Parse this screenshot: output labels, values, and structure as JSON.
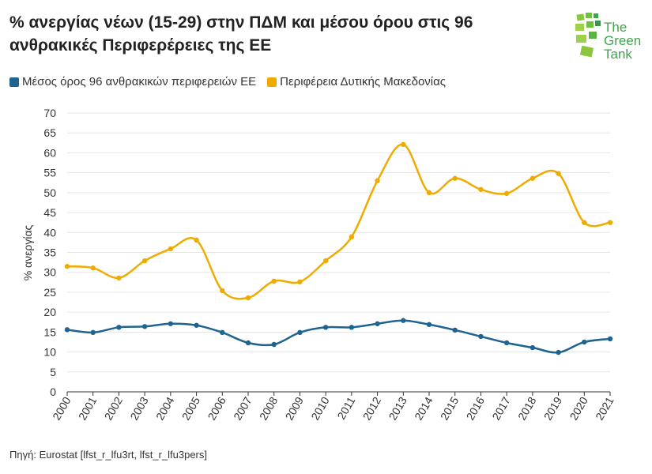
{
  "title": "% ανεργίας νέων (15-29) στην ΠΔΜ και μέσου όρου στις 96 ανθρακικές Περιφερέρειες της ΕΕ",
  "source": "Πηγή: Eurostat [lfst_r_lfu3rt, lfst_r_lfu3pers]",
  "logo": {
    "line1": "The",
    "line2": "Green",
    "line3": "Tank"
  },
  "chart_data": {
    "type": "line",
    "ylabel": "% ανεργίας",
    "xlabel": "",
    "ylim": [
      0,
      70
    ],
    "yticks": [
      0,
      5,
      10,
      15,
      20,
      25,
      30,
      35,
      40,
      45,
      50,
      55,
      60,
      65,
      70
    ],
    "grid": true,
    "legend": "top-left",
    "categories": [
      "2000",
      "2001",
      "2002",
      "2003",
      "2004",
      "2005",
      "2006",
      "2007",
      "2008",
      "2009",
      "2010",
      "2011",
      "2012",
      "2013",
      "2014",
      "2015",
      "2016",
      "2017",
      "2018",
      "2019",
      "2020",
      "2021"
    ],
    "series": [
      {
        "name": "Μέσος όρος 96 ανθρακικών περιφερειών ΕΕ",
        "color": "#1f6391",
        "values": [
          15.6,
          14.9,
          16.2,
          16.4,
          17.1,
          16.7,
          14.9,
          12.3,
          11.9,
          14.9,
          16.2,
          16.2,
          17.1,
          17.9,
          16.9,
          15.5,
          13.9,
          12.3,
          11.1,
          9.9,
          12.5,
          13.3
        ]
      },
      {
        "name": "Περιφέρεια Δυτικής Μακεδονίας",
        "color": "#f0ab00",
        "values": [
          31.5,
          31.1,
          28.6,
          32.9,
          35.9,
          38.1,
          25.4,
          23.6,
          27.8,
          27.6,
          32.9,
          38.9,
          53.0,
          62.1,
          50.0,
          53.6,
          50.8,
          49.8,
          53.6,
          54.8,
          42.5,
          42.5
        ]
      }
    ]
  }
}
